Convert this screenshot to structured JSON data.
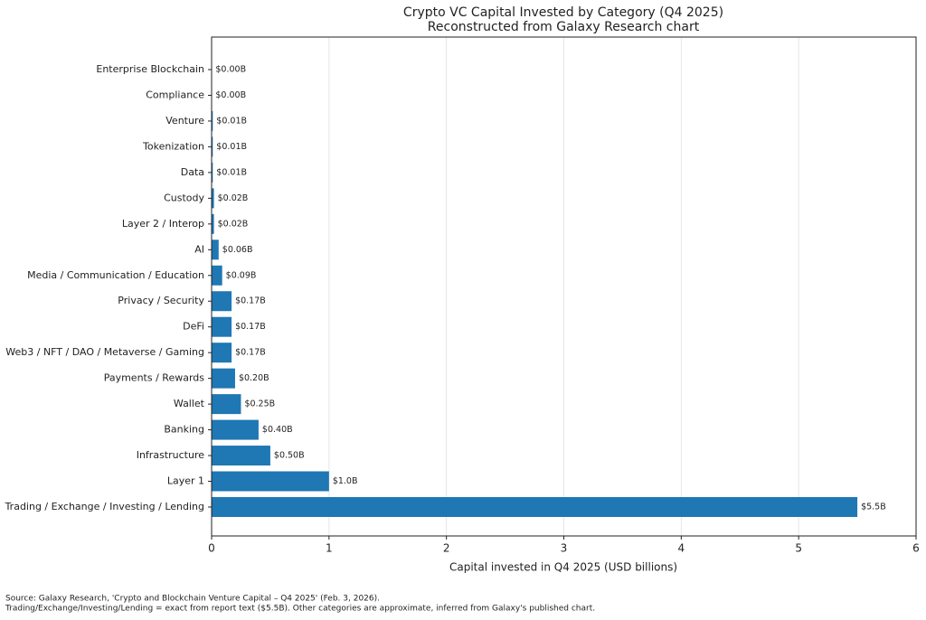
{
  "chart_data": {
    "type": "hbar",
    "title": "Crypto VC Capital Invested by Category (Q4 2025)",
    "subtitle": "Reconstructed from Galaxy Research chart",
    "xlabel": "Capital invested in Q4 2025 (USD billions)",
    "categories": [
      "Enterprise Blockchain",
      "Compliance",
      "Venture",
      "Tokenization",
      "Data",
      "Custody",
      "Layer 2 / Interop",
      "AI",
      "Media / Communication / Education",
      "Privacy / Security",
      "DeFi",
      "Web3 / NFT / DAO / Metaverse / Gaming",
      "Payments / Rewards",
      "Wallet",
      "Banking",
      "Infrastructure",
      "Layer 1",
      "Trading / Exchange / Investing / Lending"
    ],
    "values": [
      0.003,
      0.003,
      0.01,
      0.01,
      0.01,
      0.02,
      0.02,
      0.06,
      0.09,
      0.17,
      0.17,
      0.17,
      0.2,
      0.25,
      0.4,
      0.5,
      1.0,
      5.5
    ],
    "value_labels": [
      "$0.00B",
      "$0.00B",
      "$0.01B",
      "$0.01B",
      "$0.01B",
      "$0.02B",
      "$0.02B",
      "$0.06B",
      "$0.09B",
      "$0.17B",
      "$0.17B",
      "$0.17B",
      "$0.20B",
      "$0.25B",
      "$0.40B",
      "$0.50B",
      "$1.0B",
      "$5.5B"
    ],
    "color": "#1f77b4",
    "xlim": [
      0,
      6
    ],
    "xticks": [
      0,
      1,
      2,
      3,
      4,
      5,
      6
    ],
    "grid": true,
    "notes": [
      "Source: Galaxy Research, 'Crypto and Blockchain Venture Capital – Q4 2025' (Feb. 3, 2026).",
      "Trading/Exchange/Investing/Lending = exact from report text ($5.5B). Other categories are approximate, inferred from Galaxy's published chart."
    ]
  }
}
